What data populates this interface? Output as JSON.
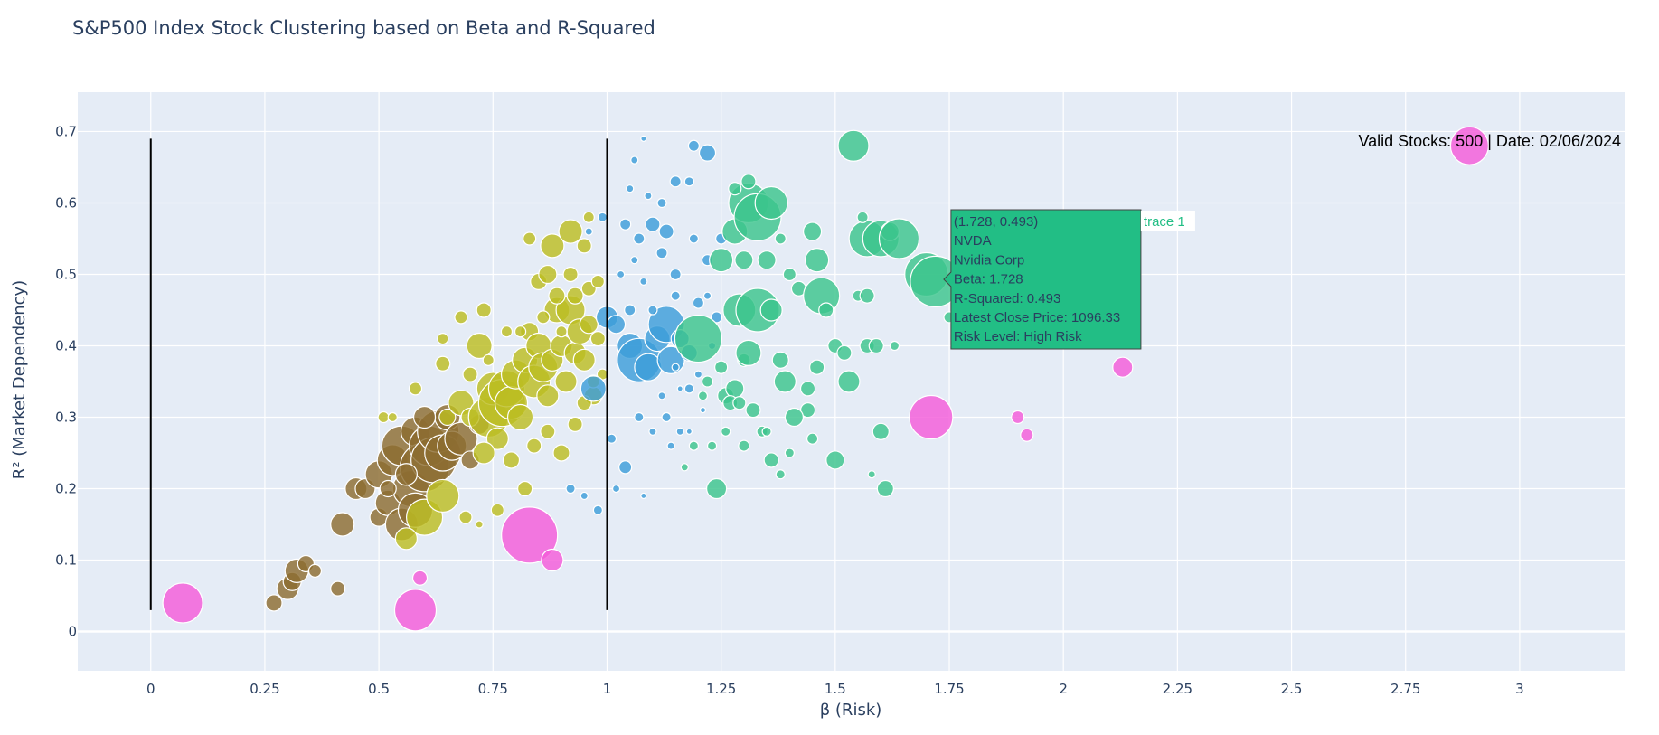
{
  "chart_data": {
    "type": "scatter",
    "title": "S&P500 Index Stock Clustering based on Beta and R-Squared",
    "xlabel": "β (Risk)",
    "ylabel": "R² (Market Dependency)",
    "xlim": [
      -0.16,
      3.23
    ],
    "ylim": [
      -0.055,
      0.755
    ],
    "x_ticks": [
      0,
      0.25,
      0.5,
      0.75,
      1,
      1.25,
      1.5,
      1.75,
      2,
      2.25,
      2.5,
      2.75,
      3
    ],
    "x_tick_labels": [
      "0",
      "0.25",
      "0.5",
      "0.75",
      "1",
      "1.25",
      "1.5",
      "1.75",
      "2",
      "2.25",
      "2.5",
      "2.75",
      "3"
    ],
    "y_ticks": [
      0,
      0.1,
      0.2,
      0.3,
      0.4,
      0.5,
      0.6,
      0.7
    ],
    "y_tick_labels": [
      "0",
      "0.1",
      "0.2",
      "0.3",
      "0.4",
      "0.5",
      "0.6",
      "0.7"
    ],
    "grid": true,
    "background": "#e5ecf6",
    "annotation": "Valid Stocks: 500 | Date: 02/06/2024",
    "reference_lines": [
      {
        "x": 0,
        "y0": 0.03,
        "y1": 0.69
      },
      {
        "x": 1,
        "y0": 0.03,
        "y1": 0.69
      }
    ],
    "series": [
      {
        "color": "#8c6d31",
        "points": [
          [
            0.27,
            0.04,
            9
          ],
          [
            0.3,
            0.06,
            12
          ],
          [
            0.31,
            0.07,
            10
          ],
          [
            0.32,
            0.085,
            13
          ],
          [
            0.34,
            0.095,
            9
          ],
          [
            0.36,
            0.085,
            7
          ],
          [
            0.41,
            0.06,
            8
          ],
          [
            0.42,
            0.15,
            13
          ],
          [
            0.45,
            0.2,
            12
          ],
          [
            0.47,
            0.2,
            11
          ],
          [
            0.5,
            0.16,
            10
          ],
          [
            0.5,
            0.22,
            15
          ],
          [
            0.52,
            0.18,
            14
          ],
          [
            0.53,
            0.24,
            17
          ],
          [
            0.55,
            0.26,
            22
          ],
          [
            0.55,
            0.15,
            18
          ],
          [
            0.57,
            0.2,
            20
          ],
          [
            0.58,
            0.17,
            19
          ],
          [
            0.58,
            0.28,
            16
          ],
          [
            0.6,
            0.23,
            27
          ],
          [
            0.61,
            0.26,
            22
          ],
          [
            0.62,
            0.24,
            25
          ],
          [
            0.63,
            0.28,
            23
          ],
          [
            0.64,
            0.25,
            20
          ],
          [
            0.65,
            0.3,
            14
          ],
          [
            0.66,
            0.26,
            16
          ],
          [
            0.68,
            0.27,
            18
          ],
          [
            0.52,
            0.2,
            9
          ],
          [
            0.56,
            0.22,
            12
          ],
          [
            0.6,
            0.3,
            12
          ],
          [
            0.7,
            0.24,
            10
          ],
          [
            0.72,
            0.29,
            11
          ]
        ]
      },
      {
        "color": "#bcbd22",
        "points": [
          [
            0.51,
            0.3,
            6
          ],
          [
            0.53,
            0.3,
            5
          ],
          [
            0.58,
            0.34,
            7
          ],
          [
            0.64,
            0.375,
            8
          ],
          [
            0.64,
            0.41,
            6
          ],
          [
            0.65,
            0.3,
            9
          ],
          [
            0.68,
            0.32,
            14
          ],
          [
            0.68,
            0.44,
            7
          ],
          [
            0.7,
            0.3,
            10
          ],
          [
            0.72,
            0.4,
            14
          ],
          [
            0.73,
            0.45,
            8
          ],
          [
            0.74,
            0.3,
            22
          ],
          [
            0.75,
            0.34,
            18
          ],
          [
            0.76,
            0.27,
            12
          ],
          [
            0.77,
            0.32,
            26
          ],
          [
            0.78,
            0.34,
            20
          ],
          [
            0.79,
            0.32,
            18
          ],
          [
            0.8,
            0.36,
            16
          ],
          [
            0.81,
            0.3,
            14
          ],
          [
            0.82,
            0.38,
            14
          ],
          [
            0.83,
            0.42,
            10
          ],
          [
            0.84,
            0.35,
            18
          ],
          [
            0.85,
            0.4,
            14
          ],
          [
            0.86,
            0.37,
            16
          ],
          [
            0.87,
            0.33,
            12
          ],
          [
            0.88,
            0.38,
            12
          ],
          [
            0.89,
            0.45,
            14
          ],
          [
            0.9,
            0.4,
            12
          ],
          [
            0.91,
            0.35,
            12
          ],
          [
            0.92,
            0.45,
            16
          ],
          [
            0.93,
            0.39,
            12
          ],
          [
            0.94,
            0.42,
            14
          ],
          [
            0.95,
            0.38,
            12
          ],
          [
            0.96,
            0.43,
            10
          ],
          [
            0.97,
            0.33,
            10
          ],
          [
            0.98,
            0.41,
            8
          ],
          [
            0.85,
            0.49,
            9
          ],
          [
            0.88,
            0.54,
            13
          ],
          [
            0.92,
            0.56,
            13
          ],
          [
            0.92,
            0.5,
            8
          ],
          [
            0.95,
            0.54,
            8
          ],
          [
            0.96,
            0.58,
            6
          ],
          [
            0.83,
            0.55,
            7
          ],
          [
            0.87,
            0.5,
            10
          ],
          [
            0.89,
            0.47,
            9
          ],
          [
            0.93,
            0.47,
            9
          ],
          [
            0.96,
            0.48,
            8
          ],
          [
            0.98,
            0.49,
            7
          ],
          [
            0.6,
            0.16,
            20
          ],
          [
            0.56,
            0.13,
            12
          ],
          [
            0.64,
            0.19,
            18
          ],
          [
            0.69,
            0.16,
            7
          ],
          [
            0.73,
            0.25,
            12
          ],
          [
            0.76,
            0.17,
            7
          ],
          [
            0.79,
            0.24,
            9
          ],
          [
            0.82,
            0.2,
            8
          ],
          [
            0.84,
            0.26,
            8
          ],
          [
            0.87,
            0.28,
            8
          ],
          [
            0.9,
            0.25,
            9
          ],
          [
            0.93,
            0.29,
            8
          ],
          [
            0.95,
            0.32,
            8
          ],
          [
            0.97,
            0.35,
            7
          ],
          [
            0.99,
            0.36,
            6
          ],
          [
            0.72,
            0.15,
            4
          ],
          [
            0.7,
            0.36,
            8
          ],
          [
            0.74,
            0.38,
            6
          ],
          [
            0.78,
            0.42,
            6
          ],
          [
            0.81,
            0.42,
            6
          ],
          [
            0.86,
            0.44,
            7
          ],
          [
            0.9,
            0.42,
            6
          ]
        ]
      },
      {
        "color": "#3d9dd9",
        "points": [
          [
            1.0,
            0.44,
            12
          ],
          [
            1.02,
            0.43,
            10
          ],
          [
            1.05,
            0.4,
            14
          ],
          [
            1.07,
            0.38,
            24
          ],
          [
            1.09,
            0.37,
            15
          ],
          [
            1.11,
            0.41,
            14
          ],
          [
            1.13,
            0.43,
            20
          ],
          [
            1.14,
            0.38,
            15
          ],
          [
            1.16,
            0.41,
            10
          ],
          [
            1.18,
            0.39,
            9
          ],
          [
            1.04,
            0.57,
            6
          ],
          [
            1.07,
            0.55,
            6
          ],
          [
            1.1,
            0.57,
            8
          ],
          [
            1.13,
            0.56,
            8
          ],
          [
            1.15,
            0.63,
            6
          ],
          [
            1.18,
            0.63,
            5
          ],
          [
            1.19,
            0.68,
            6
          ],
          [
            1.22,
            0.67,
            9
          ],
          [
            1.06,
            0.66,
            4
          ],
          [
            1.09,
            0.61,
            4
          ],
          [
            1.12,
            0.53,
            6
          ],
          [
            1.15,
            0.5,
            6
          ],
          [
            1.19,
            0.55,
            5
          ],
          [
            1.22,
            0.52,
            6
          ],
          [
            1.25,
            0.55,
            6
          ],
          [
            0.97,
            0.34,
            14
          ],
          [
            1.01,
            0.27,
            5
          ],
          [
            1.04,
            0.23,
            7
          ],
          [
            1.07,
            0.3,
            5
          ],
          [
            1.1,
            0.28,
            4
          ],
          [
            1.13,
            0.3,
            5
          ],
          [
            1.16,
            0.28,
            4
          ],
          [
            1.18,
            0.34,
            5
          ],
          [
            1.02,
            0.2,
            4
          ],
          [
            0.98,
            0.17,
            5
          ],
          [
            0.95,
            0.19,
            4
          ],
          [
            0.92,
            0.2,
            5
          ],
          [
            1.08,
            0.19,
            3
          ],
          [
            1.12,
            0.6,
            5
          ],
          [
            1.05,
            0.62,
            4
          ],
          [
            1.08,
            0.69,
            3
          ],
          [
            1.2,
            0.46,
            6
          ],
          [
            1.22,
            0.47,
            4
          ],
          [
            1.24,
            0.44,
            6
          ],
          [
            1.05,
            0.45,
            6
          ],
          [
            1.1,
            0.45,
            5
          ],
          [
            1.15,
            0.47,
            5
          ],
          [
            0.99,
            0.58,
            5
          ],
          [
            0.96,
            0.56,
            4
          ],
          [
            1.03,
            0.5,
            4
          ],
          [
            1.06,
            0.52,
            4
          ],
          [
            1.08,
            0.49,
            4
          ],
          [
            1.12,
            0.33,
            4
          ],
          [
            1.15,
            0.37,
            4
          ],
          [
            1.2,
            0.36,
            4
          ],
          [
            1.23,
            0.4,
            4
          ],
          [
            1.16,
            0.34,
            3
          ],
          [
            1.21,
            0.31,
            3
          ],
          [
            1.18,
            0.28,
            3
          ],
          [
            1.14,
            0.26,
            4
          ]
        ]
      },
      {
        "color": "#3cc48c",
        "points": [
          [
            1.2,
            0.41,
            26
          ],
          [
            1.22,
            0.35,
            6
          ],
          [
            1.25,
            0.37,
            7
          ],
          [
            1.26,
            0.33,
            9
          ],
          [
            1.28,
            0.34,
            10
          ],
          [
            1.3,
            0.38,
            7
          ],
          [
            1.29,
            0.45,
            18
          ],
          [
            1.31,
            0.39,
            14
          ],
          [
            1.33,
            0.45,
            24
          ],
          [
            1.36,
            0.45,
            12
          ],
          [
            1.38,
            0.38,
            9
          ],
          [
            1.39,
            0.35,
            12
          ],
          [
            1.25,
            0.52,
            13
          ],
          [
            1.28,
            0.56,
            14
          ],
          [
            1.3,
            0.52,
            10
          ],
          [
            1.31,
            0.6,
            22
          ],
          [
            1.33,
            0.58,
            26
          ],
          [
            1.35,
            0.52,
            10
          ],
          [
            1.36,
            0.6,
            18
          ],
          [
            1.31,
            0.63,
            8
          ],
          [
            1.28,
            0.62,
            7
          ],
          [
            1.38,
            0.55,
            6
          ],
          [
            1.4,
            0.5,
            7
          ],
          [
            1.42,
            0.48,
            8
          ],
          [
            1.45,
            0.56,
            10
          ],
          [
            1.46,
            0.52,
            13
          ],
          [
            1.47,
            0.47,
            20
          ],
          [
            1.48,
            0.45,
            8
          ],
          [
            1.5,
            0.4,
            8
          ],
          [
            1.52,
            0.39,
            8
          ],
          [
            1.53,
            0.35,
            12
          ],
          [
            1.54,
            0.68,
            17
          ],
          [
            1.55,
            0.47,
            6
          ],
          [
            1.57,
            0.47,
            8
          ],
          [
            1.57,
            0.55,
            20
          ],
          [
            1.6,
            0.55,
            20
          ],
          [
            1.62,
            0.56,
            10
          ],
          [
            1.64,
            0.55,
            22
          ],
          [
            1.7,
            0.5,
            24
          ],
          [
            1.72,
            0.49,
            28
          ],
          [
            1.75,
            0.44,
            6
          ],
          [
            1.57,
            0.4,
            8
          ],
          [
            1.59,
            0.4,
            8
          ],
          [
            1.63,
            0.4,
            5
          ],
          [
            1.6,
            0.28,
            9
          ],
          [
            1.61,
            0.2,
            9
          ],
          [
            1.5,
            0.24,
            10
          ],
          [
            1.45,
            0.27,
            6
          ],
          [
            1.4,
            0.25,
            5
          ],
          [
            1.38,
            0.22,
            5
          ],
          [
            1.36,
            0.24,
            8
          ],
          [
            1.34,
            0.28,
            6
          ],
          [
            1.32,
            0.31,
            8
          ],
          [
            1.3,
            0.26,
            6
          ],
          [
            1.27,
            0.32,
            8
          ],
          [
            1.23,
            0.26,
            5
          ],
          [
            1.24,
            0.2,
            11
          ],
          [
            1.44,
            0.34,
            8
          ],
          [
            1.46,
            0.37,
            8
          ],
          [
            1.44,
            0.31,
            8
          ],
          [
            1.41,
            0.3,
            10
          ],
          [
            1.56,
            0.58,
            6
          ],
          [
            1.58,
            0.22,
            4
          ],
          [
            1.35,
            0.28,
            5
          ],
          [
            1.29,
            0.32,
            7
          ],
          [
            1.26,
            0.28,
            5
          ],
          [
            1.21,
            0.33,
            5
          ],
          [
            1.19,
            0.26,
            5
          ],
          [
            1.17,
            0.23,
            4
          ]
        ]
      },
      {
        "color": "#f45bd9",
        "points": [
          [
            0.07,
            0.04,
            22
          ],
          [
            0.58,
            0.03,
            23
          ],
          [
            0.59,
            0.075,
            8
          ],
          [
            0.83,
            0.135,
            31
          ],
          [
            0.88,
            0.1,
            12
          ],
          [
            1.71,
            0.3,
            24
          ],
          [
            1.9,
            0.3,
            7
          ],
          [
            1.92,
            0.275,
            7
          ],
          [
            2.13,
            0.37,
            11
          ],
          [
            2.89,
            0.68,
            21
          ]
        ]
      }
    ],
    "hover": {
      "x": 1.728,
      "y": 0.493,
      "color": "#22be85",
      "lines": [
        "(1.728, 0.493)",
        "NVDA",
        "Nvidia Corp",
        "Beta: 1.728",
        "R-Squared: 0.493",
        "Latest Close Price: 1096.33",
        "Risk Level: High Risk"
      ],
      "trace_label": "trace 1"
    }
  }
}
